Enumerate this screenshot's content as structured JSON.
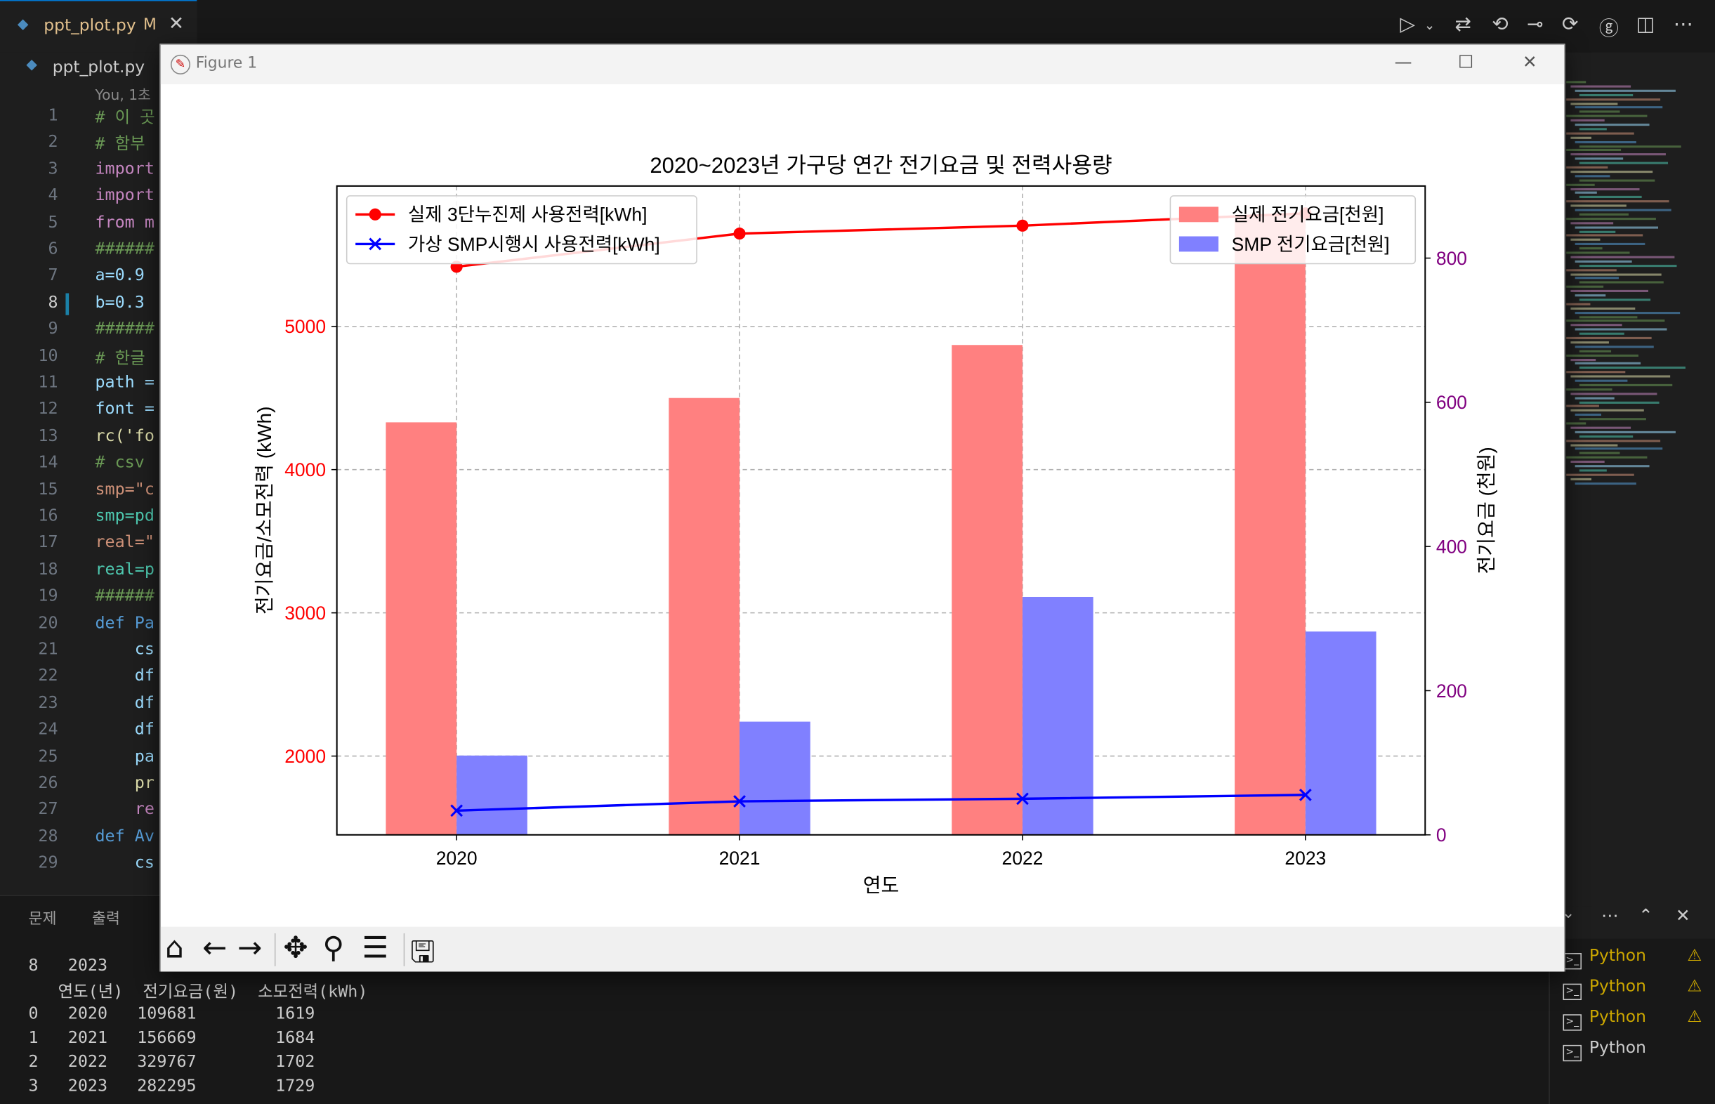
{
  "editor": {
    "tab": {
      "filename": "ppt_plot.py",
      "status": "M",
      "close": "✕"
    },
    "breadcrumb": "ppt_plot.py",
    "blame": "You, 1초",
    "lines": [
      {
        "n": "1",
        "text": "# 이 곳",
        "color": "#6a9955"
      },
      {
        "n": "2",
        "text": "# 함부",
        "color": "#6a9955"
      },
      {
        "n": "3",
        "text": "import",
        "color": "#c586c0"
      },
      {
        "n": "4",
        "text": "import",
        "color": "#c586c0"
      },
      {
        "n": "5",
        "text": "from m",
        "color": "#c586c0"
      },
      {
        "n": "6",
        "text": "######",
        "color": "#6a9955"
      },
      {
        "n": "7",
        "text": "a=0.9",
        "color": "#9cdcfe"
      },
      {
        "n": "8",
        "text": "b=0.3",
        "color": "#9cdcfe"
      },
      {
        "n": "9",
        "text": "######",
        "color": "#6a9955"
      },
      {
        "n": "10",
        "text": "# 한글",
        "color": "#6a9955"
      },
      {
        "n": "11",
        "text": "path =",
        "color": "#9cdcfe"
      },
      {
        "n": "12",
        "text": "font =",
        "color": "#9cdcfe"
      },
      {
        "n": "13",
        "text": "rc('fo",
        "color": "#dcdcaa"
      },
      {
        "n": "14",
        "text": "# csv",
        "color": "#6a9955"
      },
      {
        "n": "15",
        "text": "smp=\"c",
        "color": "#ce9178"
      },
      {
        "n": "16",
        "text": "smp=pd",
        "color": "#4ec9b0"
      },
      {
        "n": "17",
        "text": "real=\"",
        "color": "#ce9178"
      },
      {
        "n": "18",
        "text": "real=p",
        "color": "#4ec9b0"
      },
      {
        "n": "19",
        "text": "######",
        "color": "#6a9955"
      },
      {
        "n": "20",
        "text": "def Pa",
        "color": "#569cd6"
      },
      {
        "n": "21",
        "text": "    cs",
        "color": "#9cdcfe"
      },
      {
        "n": "22",
        "text": "    df",
        "color": "#9cdcfe"
      },
      {
        "n": "23",
        "text": "    df",
        "color": "#9cdcfe"
      },
      {
        "n": "24",
        "text": "    df",
        "color": "#9cdcfe"
      },
      {
        "n": "25",
        "text": "    pa",
        "color": "#9cdcfe"
      },
      {
        "n": "26",
        "text": "    pr",
        "color": "#dcdcaa"
      },
      {
        "n": "27",
        "text": "    re",
        "color": "#c586c0"
      },
      {
        "n": "28",
        "text": "def Av",
        "color": "#569cd6"
      },
      {
        "n": "29",
        "text": "    cs",
        "color": "#9cdcfe"
      }
    ]
  },
  "panel": {
    "tabs": [
      "문제",
      "출력"
    ],
    "terminal": [
      "8   2023",
      "   연도(년)  전기요금(원)  소모전력(kWh)",
      "0   2020   109681        1619",
      "1   2021   156669        1684",
      "2   2022   329767        1702",
      "3   2023   282295        1729"
    ],
    "terminals": [
      "Python",
      "Python",
      "Python",
      "Python"
    ]
  },
  "figure": {
    "title": "Figure 1"
  },
  "chart_data": {
    "type": "bar",
    "title": "2020~2023년 가구당 연간 전기요금 및 전력사용량",
    "xlabel": "연도",
    "ylabel_left": "전기요금/소모전력 (kWh)",
    "ylabel_right": "전기요금 (천원)",
    "categories": [
      "2020",
      "2021",
      "2022",
      "2023"
    ],
    "left_axis": {
      "ylim": [
        1450,
        5980
      ],
      "ticks": [
        "2000",
        "3000",
        "4000",
        "5000"
      ],
      "color": "#ff0000"
    },
    "right_axis": {
      "ylim": [
        0,
        900
      ],
      "ticks": [
        "0",
        "200",
        "400",
        "600",
        "800"
      ],
      "color": "#800080"
    },
    "bar_series": [
      {
        "name": "실제 전기요금[천원]",
        "values": [
          4330,
          4500,
          4870,
          5780
        ],
        "color": "#ff8080"
      },
      {
        "name": "SMP 전기요금[천원]",
        "values": [
          110,
          157,
          330,
          282
        ],
        "color": "#8080ff"
      }
    ],
    "line_series": [
      {
        "name": "실제 3단누진제 사용전력[kWh]",
        "values": [
          788,
          834,
          845,
          862
        ],
        "color": "#ff0000",
        "marker": "●"
      },
      {
        "name": "가상 SMP시행시 사용전력[kWh]",
        "values": [
          1619,
          1684,
          1702,
          1729
        ],
        "color": "#0000ff",
        "marker": "✕"
      }
    ],
    "grid": true
  }
}
